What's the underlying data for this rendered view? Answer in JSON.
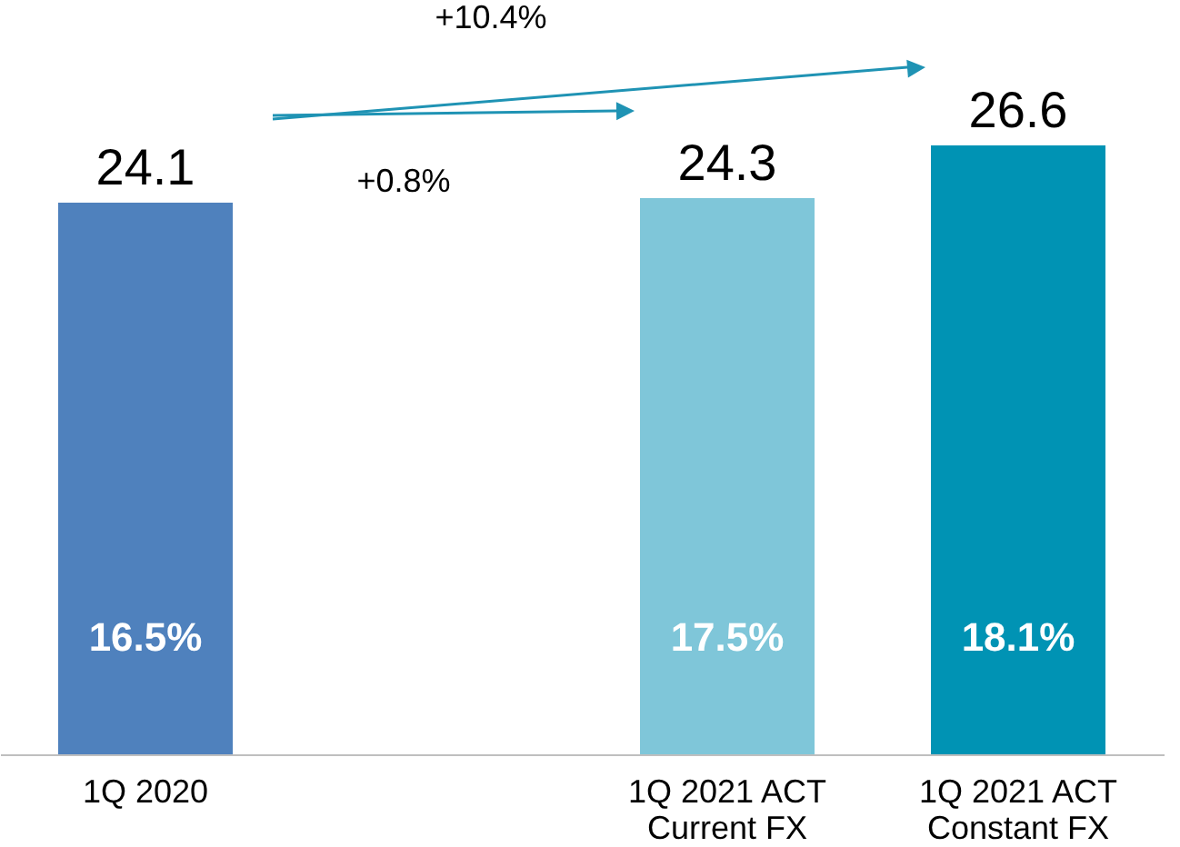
{
  "chart_data": {
    "type": "bar",
    "categories": [
      "1Q 2020",
      null,
      "1Q 2021 ACT\nCurrent FX",
      "1Q 2021 ACT\nConstant FX"
    ],
    "values": [
      24.1,
      null,
      24.3,
      26.6
    ],
    "colors": [
      "#4f81bd",
      null,
      "#7fc6d9",
      "#0093b4"
    ],
    "data_labels": true,
    "annotations": [
      "+10.4%",
      "+0.8%",
      "16.5%",
      "17.5%",
      "18.1%"
    ]
  }
}
